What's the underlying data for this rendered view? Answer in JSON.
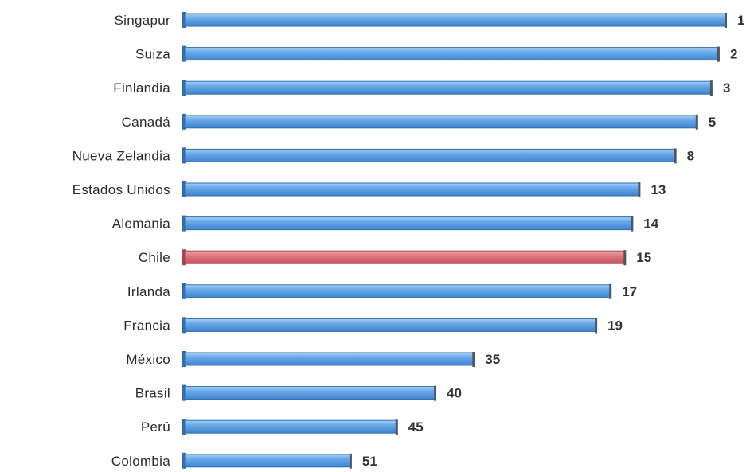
{
  "chart_data": {
    "type": "bar",
    "orientation": "horizontal",
    "categories": [
      "Singapur",
      "Suiza",
      "Finlandia",
      "Canadá",
      "Nueva Zelandia",
      "Estados Unidos",
      "Alemania",
      "Chile",
      "Irlanda",
      "Francia",
      "México",
      "Brasil",
      "Perú",
      "Colombia"
    ],
    "values": [
      1,
      2,
      3,
      5,
      8,
      13,
      14,
      15,
      17,
      19,
      35,
      40,
      45,
      51
    ],
    "highlight": "Chile",
    "colors": {
      "bar": "#5b9fdf",
      "bar_dark": "#2f6fb0",
      "highlight": "#d9727a",
      "highlight_dark": "#a8434c"
    },
    "grid": false,
    "legend": "none"
  }
}
